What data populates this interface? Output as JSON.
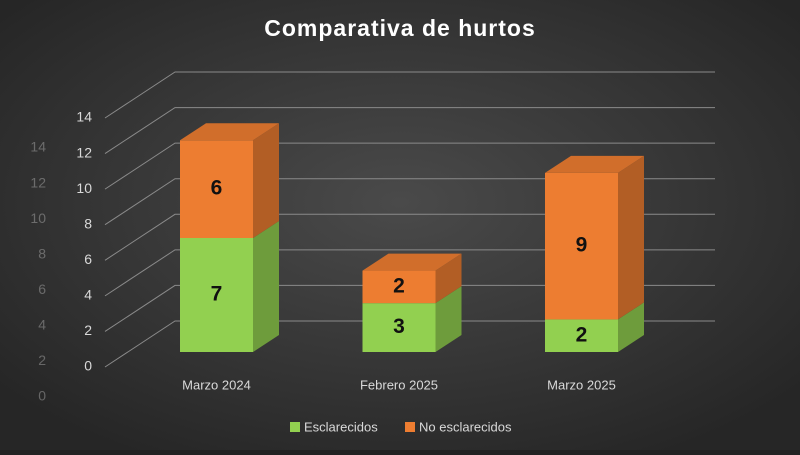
{
  "chart_data": {
    "type": "bar3d_stacked",
    "title": "Comparativa de hurtos",
    "categories": [
      "Marzo 2024",
      "Febrero 2025",
      "Marzo 2025"
    ],
    "series": [
      {
        "name": "Esclarecidos",
        "color": "#92d050",
        "values": [
          7,
          3,
          2
        ]
      },
      {
        "name": "No esclarecidos",
        "color": "#ed7d31",
        "values": [
          6,
          2,
          9
        ]
      }
    ],
    "ylim": [
      0,
      14
    ],
    "yticks": [
      0,
      2,
      4,
      6,
      8,
      10,
      12,
      14
    ],
    "grid": true,
    "legend": "bottom"
  }
}
